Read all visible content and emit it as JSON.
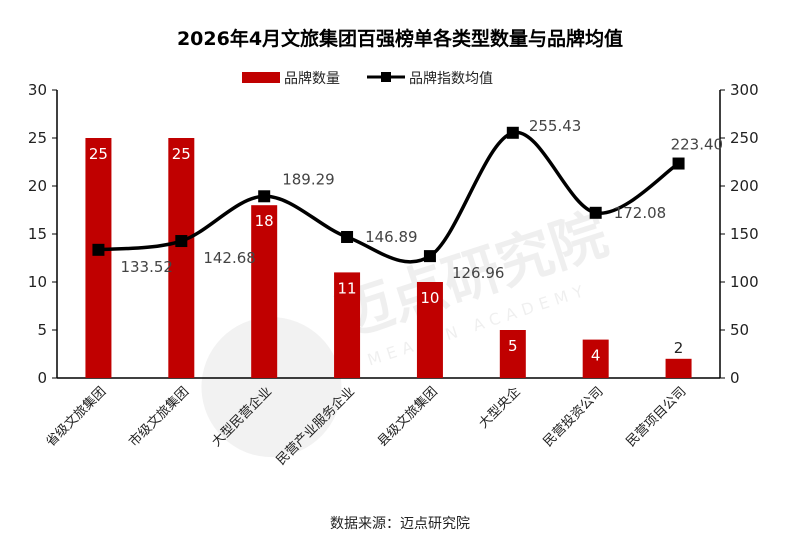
{
  "chart_data": {
    "type": "bar",
    "title": "2026年4月文旅集团百强榜单各类型数量与品牌均值",
    "categories": [
      "省级文旅集团",
      "市级文旅集团",
      "大型民营企业",
      "民营产业服务企业",
      "县级文旅集团",
      "大型央企",
      "民营投资公司",
      "民营项目公司"
    ],
    "series": [
      {
        "name": "品牌数量",
        "type": "bar",
        "axis": "left",
        "color": "#c00000",
        "values": [
          25,
          25,
          18,
          11,
          10,
          5,
          4,
          2
        ],
        "labels": [
          "25",
          "25",
          "18",
          "11",
          "10",
          "5",
          "4",
          "2"
        ]
      },
      {
        "name": "品牌指数均值",
        "type": "line",
        "axis": "right",
        "color": "#000000",
        "values": [
          133.52,
          142.68,
          189.29,
          146.89,
          126.96,
          255.43,
          172.08,
          223.4
        ],
        "labels": [
          "133.52",
          "142.68",
          "189.29",
          "146.89",
          "126.96",
          "255.43",
          "172.08",
          "223.40"
        ]
      }
    ],
    "y_left": {
      "min": 0,
      "max": 30,
      "ticks": [
        "0",
        "5",
        "10",
        "15",
        "20",
        "25",
        "30"
      ]
    },
    "y_right": {
      "min": 0,
      "max": 300,
      "ticks": [
        "0",
        "50",
        "100",
        "150",
        "200",
        "250",
        "300"
      ]
    },
    "legend_position": "top-center",
    "grid": false
  },
  "source": "数据来源：迈点研究院",
  "watermark": {
    "cn": "迈点研究院",
    "en": "MEADIN ACADEMY"
  }
}
